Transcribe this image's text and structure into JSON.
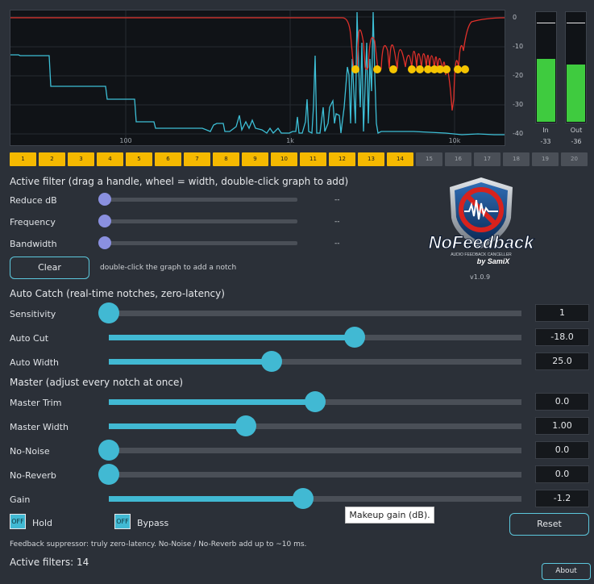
{
  "graph": {
    "db_ticks": [
      "0",
      "-10",
      "-20",
      "-30",
      "-40"
    ],
    "freq_ticks": [
      "100",
      "1k",
      "10k"
    ],
    "curve_color": "#e0302a",
    "spectrum_color": "#3dbfd6",
    "notch_color": "#f5c400"
  },
  "meters": {
    "in": {
      "label": "In",
      "value": "-33",
      "level": 0.57
    },
    "out": {
      "label": "Out",
      "value": "-36",
      "level": 0.52
    }
  },
  "bands": [
    {
      "label": "1",
      "active": true
    },
    {
      "label": "2",
      "active": true
    },
    {
      "label": "3",
      "active": true
    },
    {
      "label": "4",
      "active": true
    },
    {
      "label": "5",
      "active": true
    },
    {
      "label": "6",
      "active": true
    },
    {
      "label": "7",
      "active": true
    },
    {
      "label": "8",
      "active": true
    },
    {
      "label": "9",
      "active": true
    },
    {
      "label": "10",
      "active": true
    },
    {
      "label": "11",
      "active": true
    },
    {
      "label": "12",
      "active": true
    },
    {
      "label": "13",
      "active": true
    },
    {
      "label": "14",
      "active": true
    },
    {
      "label": "15",
      "active": false
    },
    {
      "label": "16",
      "active": false
    },
    {
      "label": "17",
      "active": false
    },
    {
      "label": "18",
      "active": false
    },
    {
      "label": "19",
      "active": false
    },
    {
      "label": "20",
      "active": false
    }
  ],
  "active_filter": {
    "heading": "Active filter  (drag a handle, wheel = width, double-click graph to add)",
    "rows": [
      {
        "label": "Reduce dB",
        "value": "--"
      },
      {
        "label": "Frequency",
        "value": "--"
      },
      {
        "label": "Bandwidth",
        "value": "--"
      }
    ],
    "clear_label": "Clear",
    "hint": "double-click the graph to add a notch"
  },
  "logo": {
    "wordmark": "NoFeedback",
    "tagline": "AUDIO FEEDBACK CANCELLER",
    "by": "by SamiX",
    "version": "v1.0.9"
  },
  "auto_catch": {
    "heading": "Auto Catch  (real-time notches, zero-latency)",
    "sliders": [
      {
        "label": "Sensitivity",
        "value": "1",
        "position": 0.0
      },
      {
        "label": "Auto Cut",
        "value": "-18.0",
        "position": 0.595
      },
      {
        "label": "Auto Width",
        "value": "25.0",
        "position": 0.395
      }
    ]
  },
  "master": {
    "heading": "Master  (adjust every notch at once)",
    "sliders": [
      {
        "label": "Master Trim",
        "value": "0.0",
        "position": 0.5
      },
      {
        "label": "Master Width",
        "value": "1.00",
        "position": 0.333
      },
      {
        "label": "No-Noise",
        "value": "0.0",
        "position": 0.0
      },
      {
        "label": "No-Reverb",
        "value": "0.0",
        "position": 0.0
      },
      {
        "label": "Gain",
        "value": "-1.2",
        "position": 0.47
      }
    ]
  },
  "toggles": {
    "hold": {
      "state": "OFF",
      "label": "Hold"
    },
    "bypass": {
      "state": "OFF",
      "label": "Bypass"
    }
  },
  "tooltip": "Makeup gain (dB).",
  "reset_label": "Reset",
  "status_text": "Feedback suppressor: truly zero-latency.  No-Noise / No-Reverb add up to ~10 ms.",
  "active_filters": "Active filters: 14",
  "about_label": "About"
}
